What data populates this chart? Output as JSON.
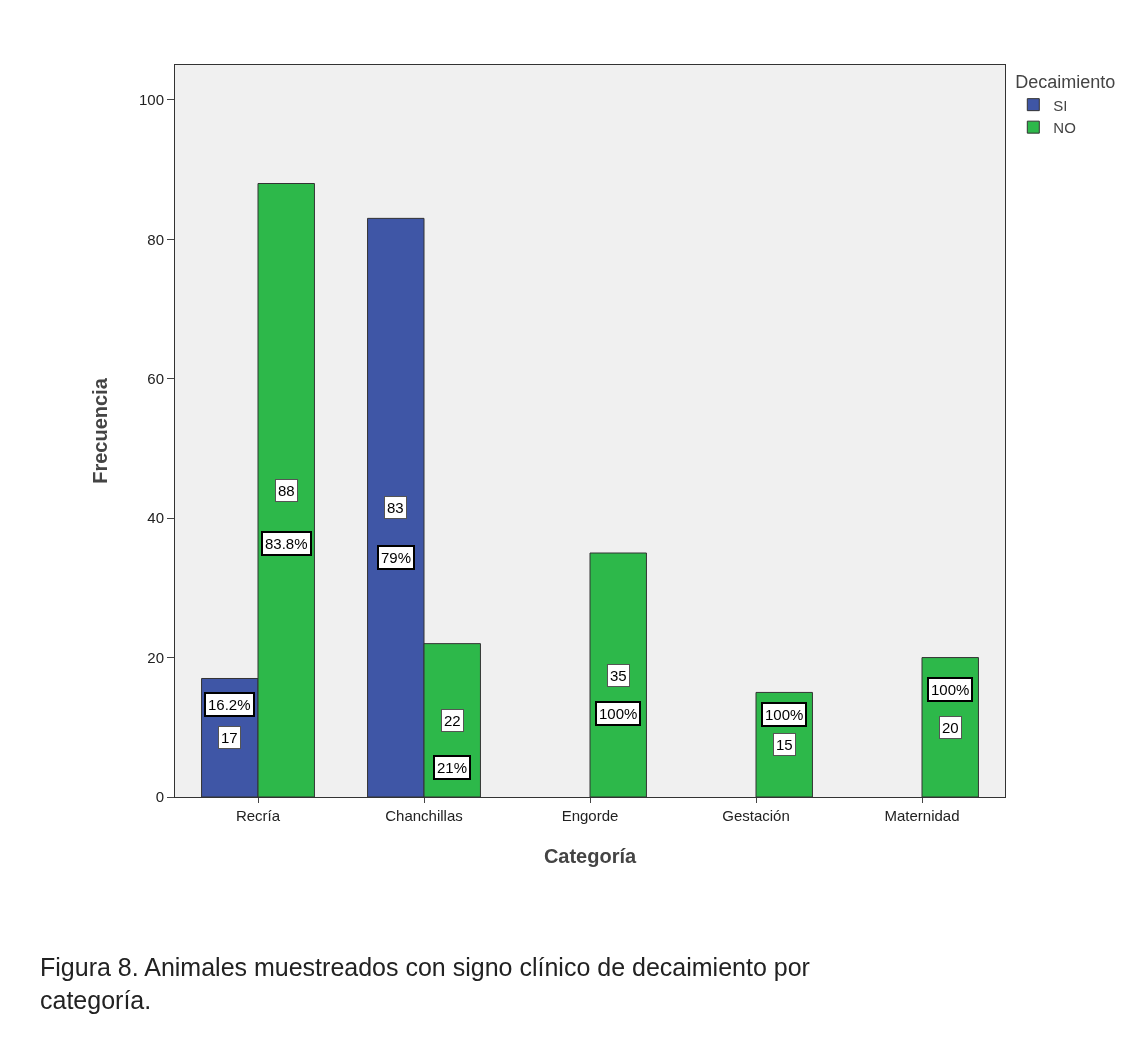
{
  "chart_data": {
    "type": "bar",
    "xlabel": "Categoría",
    "ylabel": "Frecuencia",
    "legend_title": "Decaimiento",
    "legend": "top right",
    "categories": [
      "Recría",
      "Chanchillas",
      "Engorde",
      "Gestación",
      "Maternidad"
    ],
    "ylim": [
      0,
      105
    ],
    "yticks": [
      0,
      20,
      40,
      60,
      80,
      100
    ],
    "series": [
      {
        "name": "SI",
        "color": "#3f56a6",
        "values": [
          17,
          83,
          null,
          null,
          null
        ],
        "value_labels": [
          "17",
          "83",
          null,
          null,
          null
        ]
      },
      {
        "name": "NO",
        "color": "#2db84a",
        "values": [
          88,
          22,
          35,
          15,
          20
        ],
        "value_labels": [
          "88",
          "22",
          "35",
          "15",
          "20"
        ]
      }
    ],
    "annotations": [
      {
        "text": "16.2%",
        "x": "Recría",
        "y": 13.2
      },
      {
        "text": "83.8%",
        "x": "Recría",
        "y": 36.4
      },
      {
        "text": "79%",
        "x": "Chanchillas",
        "y": 34.3
      },
      {
        "text": "21%",
        "x": "Chanchillas",
        "y": 4.2
      },
      {
        "text": "100%",
        "x": "Engorde",
        "y": 12
      },
      {
        "text": "100%",
        "x": "Gestación",
        "y": 11.8
      },
      {
        "text": "100%",
        "x": "Maternidad",
        "y": 15.4
      },
      "Figura 8. Animales muestreados con signo clínico de decaimiento por categoría."
    ]
  }
}
